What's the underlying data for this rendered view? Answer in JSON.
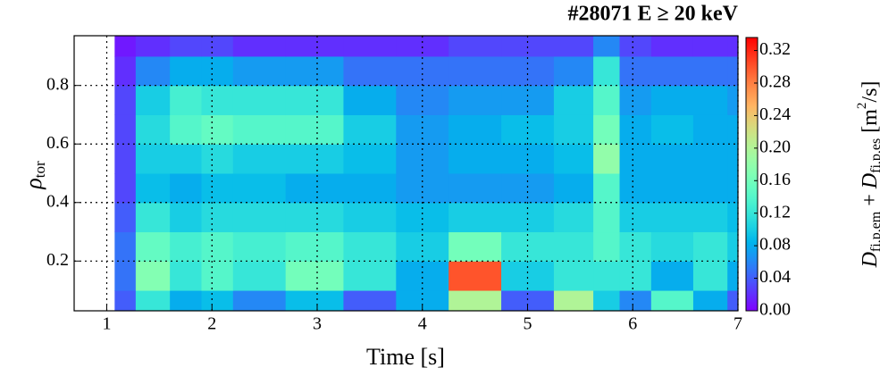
{
  "chart_data": {
    "type": "contour",
    "title": "#28071 E ≥ 20 keV",
    "x_label": "Time [s]",
    "y_label": {
      "symbol": "ρ",
      "subscript": "tor"
    },
    "colorbar_label": [
      "D",
      "fi,p,em",
      " + ",
      "D",
      "fi,p,es",
      " [m",
      "2",
      "/s]"
    ],
    "colormap": "rainbow",
    "grid": true,
    "xlim": [
      0.69,
      7
    ],
    "xticks": [
      1,
      2,
      3,
      4,
      5,
      6,
      7
    ],
    "ylim": [
      0.03,
      0.97
    ],
    "yticks": [
      0.2,
      0.4,
      0.6,
      0.8
    ],
    "clim": [
      0,
      0.336
    ],
    "cticks": [
      {
        "value": 0,
        "label": "0.00"
      },
      0.04,
      0.08,
      0.12,
      0.16,
      {
        "value": 0.2,
        "label": "0.20"
      },
      0.24,
      0.28,
      0.32
    ],
    "x": [
      1.0,
      1.15,
      1.4,
      1.8,
      2.0,
      2.4,
      3.0,
      3.5,
      4.0,
      4.5,
      5.0,
      5.5,
      5.75,
      6.0,
      6.35,
      6.8,
      7.0
    ],
    "y": [
      0.05,
      0.15,
      0.25,
      0.35,
      0.45,
      0.55,
      0.65,
      0.75,
      0.85,
      0.95
    ],
    "z": [
      [
        null,
        0.04,
        0.12,
        0.08,
        0.09,
        0.06,
        0.09,
        0.04,
        0.08,
        0.2,
        0.04,
        0.2,
        0.1,
        0.06,
        0.14,
        0.08,
        0.04
      ],
      [
        null,
        0.05,
        0.17,
        0.12,
        0.14,
        0.12,
        0.16,
        0.12,
        0.08,
        0.3,
        0.1,
        0.12,
        0.12,
        0.12,
        0.08,
        0.12,
        0.08
      ],
      [
        null,
        0.05,
        0.15,
        0.13,
        0.14,
        0.13,
        0.14,
        0.12,
        0.1,
        0.16,
        0.12,
        0.12,
        0.14,
        0.12,
        0.11,
        0.12,
        0.1
      ],
      [
        null,
        0.04,
        0.12,
        0.1,
        0.11,
        0.11,
        0.11,
        0.1,
        0.09,
        0.1,
        0.1,
        0.11,
        0.14,
        0.1,
        0.1,
        0.1,
        0.09
      ],
      [
        null,
        0.03,
        0.09,
        0.08,
        0.09,
        0.09,
        0.08,
        0.08,
        0.07,
        0.07,
        0.07,
        0.08,
        0.14,
        0.08,
        0.08,
        0.08,
        0.08
      ],
      [
        null,
        0.03,
        0.1,
        0.1,
        0.11,
        0.1,
        0.1,
        0.09,
        0.07,
        0.08,
        0.08,
        0.09,
        0.18,
        0.08,
        0.08,
        0.08,
        0.08
      ],
      [
        null,
        0.03,
        0.11,
        0.14,
        0.15,
        0.14,
        0.14,
        0.1,
        0.07,
        0.08,
        0.09,
        0.1,
        0.16,
        0.08,
        0.09,
        0.08,
        0.08
      ],
      [
        null,
        0.03,
        0.1,
        0.13,
        0.12,
        0.12,
        0.12,
        0.08,
        0.06,
        0.07,
        0.07,
        0.1,
        0.14,
        0.07,
        0.08,
        0.08,
        0.07
      ],
      [
        null,
        0.02,
        0.06,
        0.08,
        0.08,
        0.07,
        0.07,
        0.05,
        0.05,
        0.05,
        0.05,
        0.06,
        0.12,
        0.05,
        0.05,
        0.05,
        0.05
      ],
      [
        null,
        0.01,
        0.02,
        0.03,
        0.03,
        0.02,
        0.02,
        0.02,
        0.02,
        0.03,
        0.03,
        0.03,
        0.06,
        0.03,
        0.02,
        0.02,
        0.02
      ]
    ]
  }
}
